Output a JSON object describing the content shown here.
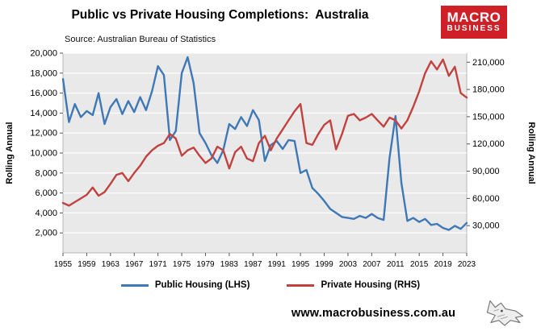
{
  "header": {
    "title": "Public vs Private Housing Completions:  Australia",
    "source": "Source: Australian Bureau of Statistics",
    "logo": {
      "line1": "MACRO",
      "line2": "BUSINESS",
      "bg_color": "#cf2027"
    }
  },
  "chart_data": {
    "type": "line",
    "title": "Public vs Private Housing Completions: Australia",
    "x_start": 1955,
    "x_end": 2023,
    "x_ticks": [
      1955,
      1959,
      1963,
      1967,
      1971,
      1975,
      1979,
      1983,
      1987,
      1991,
      1995,
      1999,
      2003,
      2007,
      2011,
      2015,
      2019,
      2023
    ],
    "left_axis": {
      "label": "Rolling Annual",
      "min": 0,
      "max": 20000,
      "ticks": [
        2000,
        4000,
        6000,
        8000,
        10000,
        12000,
        14000,
        16000,
        18000,
        20000
      ],
      "tick_labels": [
        "2,000",
        "4,000",
        "6,000",
        "8,000",
        "10,000",
        "12,000",
        "14,000",
        "16,000",
        "18,000",
        "20,000"
      ]
    },
    "right_axis": {
      "label": "Rolling Annual",
      "min": 0,
      "max": 220000,
      "ticks": [
        30000,
        60000,
        90000,
        120000,
        150000,
        180000,
        210000
      ],
      "tick_labels": [
        "30,000",
        "60,000",
        "90,000",
        "120,000",
        "150,000",
        "180,000",
        "210,000"
      ]
    },
    "plot_bg": "#e9e9e9",
    "grid": true,
    "legend_position": "bottom",
    "series": [
      {
        "name": "Public Housing (LHS)",
        "axis": "left",
        "color": "#3e78b5",
        "values": [
          17400,
          13100,
          14900,
          13600,
          14200,
          13800,
          16000,
          12900,
          14600,
          15400,
          13900,
          15200,
          14100,
          15600,
          14300,
          16200,
          18700,
          17800,
          11300,
          12200,
          18000,
          19600,
          17000,
          12000,
          11000,
          9800,
          9000,
          10300,
          12900,
          12400,
          13600,
          12700,
          14300,
          13300,
          9200,
          10800,
          11200,
          10400,
          11300,
          11200,
          8000,
          8300,
          6500,
          5900,
          5200,
          4400,
          4000,
          3600,
          3500,
          3400,
          3700,
          3500,
          3900,
          3500,
          3300,
          9500,
          13700,
          7000,
          3200,
          3500,
          3100,
          3400,
          2800,
          2900,
          2500,
          2300,
          2700,
          2400,
          3000
        ]
      },
      {
        "name": "Private Housing (RHS)",
        "axis": "right",
        "color": "#c2423f",
        "values": [
          55000,
          52000,
          56000,
          60000,
          64000,
          72000,
          63000,
          67000,
          76000,
          86000,
          88000,
          79000,
          88000,
          96000,
          106000,
          113000,
          118000,
          121000,
          131000,
          126000,
          107000,
          113000,
          116000,
          107000,
          99000,
          104000,
          117000,
          113000,
          93000,
          111000,
          117000,
          104000,
          101000,
          121000,
          129000,
          113000,
          126000,
          136000,
          146000,
          156000,
          164000,
          121000,
          119000,
          131000,
          141000,
          146000,
          114000,
          131000,
          151000,
          153000,
          146000,
          149000,
          153000,
          146000,
          139000,
          149000,
          146000,
          137000,
          146000,
          161000,
          178000,
          198000,
          211000,
          202000,
          213000,
          195000,
          205000,
          176000,
          171000
        ]
      }
    ]
  },
  "legend": {
    "items": [
      {
        "label": "Public Housing (LHS)",
        "color": "#3e78b5"
      },
      {
        "label": "Private Housing (RHS)",
        "color": "#c2423f"
      }
    ]
  },
  "footer": {
    "website": "www.macrobusiness.com.au",
    "logo_icon": "wolf-icon"
  }
}
